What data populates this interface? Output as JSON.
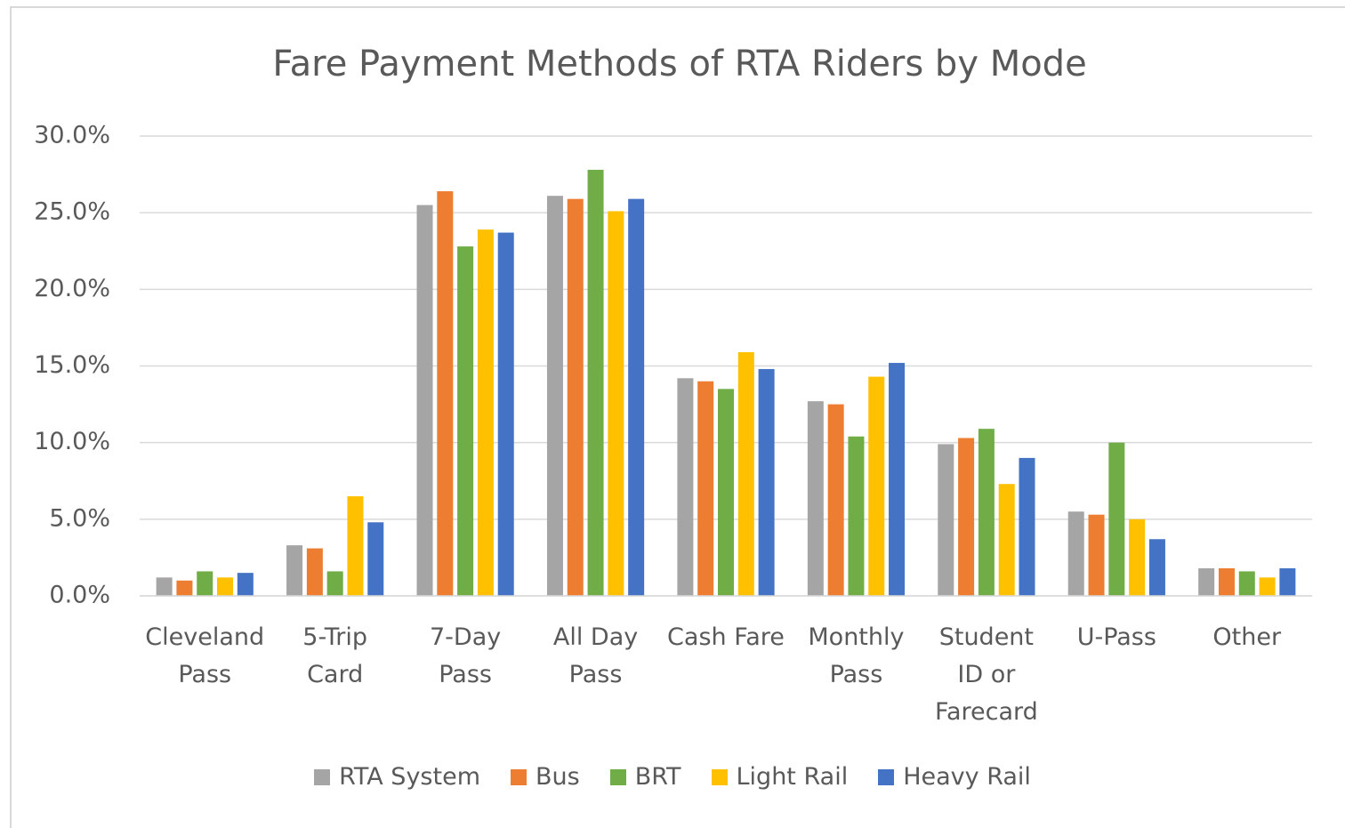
{
  "chart_data": {
    "type": "bar",
    "title": "Fare Payment Methods of RTA Riders by Mode",
    "categories": [
      "Cleveland\nPass",
      "5-Trip\nCard",
      "7-Day\nPass",
      "All Day\nPass",
      "Cash Fare",
      "Monthly\nPass",
      "Student\nID or\nFarecard",
      "U-Pass",
      "Other"
    ],
    "series": [
      {
        "name": "RTA System",
        "color": "#a5a5a5",
        "values": [
          1.2,
          3.3,
          25.5,
          26.1,
          14.2,
          12.7,
          9.9,
          5.5,
          1.8
        ]
      },
      {
        "name": "Bus",
        "color": "#ed7d31",
        "values": [
          1.0,
          3.1,
          26.4,
          25.9,
          14.0,
          12.5,
          10.3,
          5.3,
          1.8
        ]
      },
      {
        "name": "BRT",
        "color": "#70ad47",
        "values": [
          1.6,
          1.6,
          22.8,
          27.8,
          13.5,
          10.4,
          10.9,
          10.0,
          1.6
        ]
      },
      {
        "name": "Light Rail",
        "color": "#ffc000",
        "values": [
          1.2,
          6.5,
          23.9,
          25.1,
          15.9,
          14.3,
          7.3,
          5.0,
          1.2
        ]
      },
      {
        "name": "Heavy Rail",
        "color": "#4472c4",
        "values": [
          1.5,
          4.8,
          23.7,
          25.9,
          14.8,
          15.2,
          9.0,
          3.7,
          1.8
        ]
      }
    ],
    "ylim": [
      0,
      30
    ],
    "yticks": [
      {
        "value": 0,
        "label": "0.0%"
      },
      {
        "value": 5,
        "label": "5.0%"
      },
      {
        "value": 10,
        "label": "10.0%"
      },
      {
        "value": 15,
        "label": "15.0%"
      },
      {
        "value": 20,
        "label": "20.0%"
      },
      {
        "value": 25,
        "label": "25.0%"
      },
      {
        "value": 30,
        "label": "30.0%"
      }
    ],
    "grid": true,
    "legend": "bottom"
  }
}
